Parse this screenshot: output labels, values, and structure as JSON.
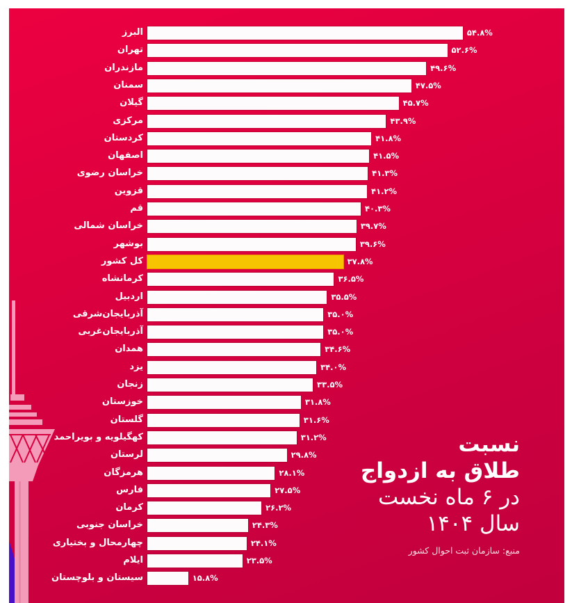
{
  "colors": {
    "background": "#D8003F",
    "bar": "#FDFBFC",
    "highlight_bar": "#F6C400",
    "text": "#FFFFFF"
  },
  "title": {
    "line1": "نسبت",
    "line2": "طلاق به ازدواج",
    "line3": "در ۶ ماه نخست",
    "line4": "سال ۱۴۰۴"
  },
  "source": "منبع: سازمان ثبت احوال کشور",
  "rows": [
    {
      "label": "البرز",
      "value_label": "۵۴.۸%"
    },
    {
      "label": "تهران",
      "value_label": "۵۲.۶%"
    },
    {
      "label": "مازندران",
      "value_label": "۴۹.۶%"
    },
    {
      "label": "سمنان",
      "value_label": "۴۷.۵%"
    },
    {
      "label": "گیلان",
      "value_label": "۴۵.۷%"
    },
    {
      "label": "مرکزی",
      "value_label": "۴۳.۹%"
    },
    {
      "label": "کردستان",
      "value_label": "۴۱.۸%"
    },
    {
      "label": "اصفهان",
      "value_label": "۴۱.۵%"
    },
    {
      "label": "خراسان رضوی",
      "value_label": "۴۱.۳%"
    },
    {
      "label": "قزوین",
      "value_label": "۴۱.۲%"
    },
    {
      "label": "قم",
      "value_label": "۴۰.۳%"
    },
    {
      "label": "خراسان شمالی",
      "value_label": "۳۹.۷%"
    },
    {
      "label": "بوشهر",
      "value_label": "۳۹.۶%"
    },
    {
      "label": "کل کشور",
      "value_label": "۳۷.۸%"
    },
    {
      "label": "کرمانشاه",
      "value_label": "۳۶.۵%"
    },
    {
      "label": "اردبیل",
      "value_label": "۳۵.۵%"
    },
    {
      "label": "آذربایجان‌شرقی",
      "value_label": "۳۵.۰%"
    },
    {
      "label": "آذربایجان‌غربی",
      "value_label": "۳۵.۰%"
    },
    {
      "label": "همدان",
      "value_label": "۳۴.۶%"
    },
    {
      "label": "یزد",
      "value_label": "۳۴.۰%"
    },
    {
      "label": "زنجان",
      "value_label": "۳۳.۵%"
    },
    {
      "label": "خوزستان",
      "value_label": "۳۱.۸%"
    },
    {
      "label": "گلستان",
      "value_label": "۳۱.۶%"
    },
    {
      "label": "کهگیلویه و بویراحمد",
      "value_label": "۳۱.۲%"
    },
    {
      "label": "لرستان",
      "value_label": "۲۹.۸%"
    },
    {
      "label": "هرمزگان",
      "value_label": "۲۸.۱%"
    },
    {
      "label": "فارس",
      "value_label": "۲۷.۵%"
    },
    {
      "label": "کرمان",
      "value_label": "۲۶.۲%"
    },
    {
      "label": "خراسان جنوبی",
      "value_label": "۲۴.۳%"
    },
    {
      "label": "چهارمحال و بختیاری",
      "value_label": "۲۴.۱%"
    },
    {
      "label": "ایلام",
      "value_label": "۲۳.۵%"
    },
    {
      "label": "سیستان و بلوچستان",
      "value_label": "۱۵.۸%"
    }
  ],
  "chart_data": {
    "type": "bar",
    "orientation": "horizontal",
    "title": "نسبت طلاق به ازدواج در ۶ ماه نخست سال ۱۴۰۴",
    "source": "منبع: سازمان ثبت احوال کشور",
    "xlabel": "",
    "ylabel": "",
    "unit": "%",
    "grid": false,
    "legend": null,
    "highlight_category": "کل کشور",
    "categories": [
      "البرز",
      "تهران",
      "مازندران",
      "سمنان",
      "گیلان",
      "مرکزی",
      "کردستان",
      "اصفهان",
      "خراسان رضوی",
      "قزوین",
      "قم",
      "خراسان شمالی",
      "بوشهر",
      "کل کشور",
      "کرمانشاه",
      "اردبیل",
      "آذربایجان‌شرقی",
      "آذربایجان‌غربی",
      "همدان",
      "یزد",
      "زنجان",
      "خوزستان",
      "گلستان",
      "کهگیلویه و بویراحمد",
      "لرستان",
      "هرمزگان",
      "فارس",
      "کرمان",
      "خراسان جنوبی",
      "چهارمحال و بختیاری",
      "ایلام",
      "سیستان و بلوچستان"
    ],
    "values": [
      54.8,
      52.6,
      49.6,
      47.5,
      45.7,
      43.9,
      41.8,
      41.5,
      41.3,
      41.2,
      40.3,
      39.7,
      39.6,
      37.8,
      36.5,
      35.5,
      35.0,
      35.0,
      34.6,
      34.0,
      33.5,
      31.8,
      31.6,
      31.2,
      29.8,
      28.1,
      27.5,
      26.2,
      24.3,
      24.1,
      23.5,
      15.8
    ],
    "xlim": [
      10,
      55
    ]
  }
}
